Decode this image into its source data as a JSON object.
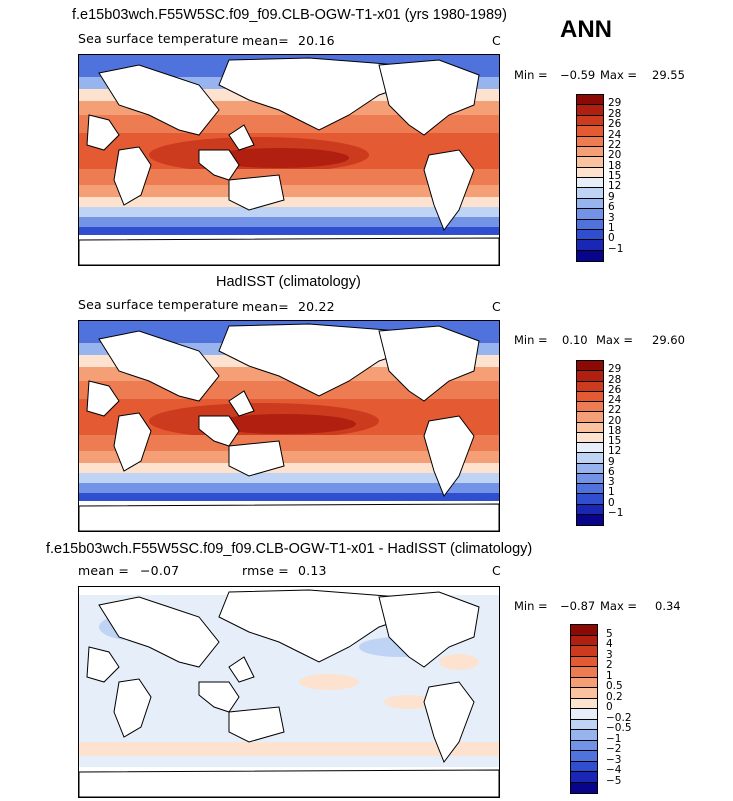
{
  "season": "ANN",
  "colors": {
    "sst_scale": [
      "#08058c",
      "#1a27b5",
      "#2f4fd0",
      "#4f72dd",
      "#7394e6",
      "#98b4ee",
      "#bfd3f5",
      "#e6eefa",
      "#fde2cf",
      "#fbc2a0",
      "#f59f76",
      "#ee7c52",
      "#e35a33",
      "#cc3b1d",
      "#b01f10",
      "#8c0a05"
    ],
    "diff_scale": [
      "#08058c",
      "#1a27b5",
      "#2f4fd0",
      "#4f72dd",
      "#7394e6",
      "#98b4ee",
      "#bfd3f5",
      "#e6eefa",
      "#fde2cf",
      "#fbc2a0",
      "#f59f76",
      "#ee7c52",
      "#e35a33",
      "#cc3b1d",
      "#b01f10",
      "#8c0a05"
    ]
  },
  "panels": {
    "model": {
      "title": "f.e15b03wch.F55W5SC.f09_f09.CLB-OGW-T1-x01 (yrs 1980-1989)",
      "field": "Sea surface temperature",
      "mean_label": "mean=",
      "mean_value": "20.16",
      "units": "C",
      "min_label": "Min =",
      "min_value": "−0.59",
      "max_label": "Max =",
      "max_value": "29.55"
    },
    "obs": {
      "title": "HadISST (climatology)",
      "field": "Sea surface temperature",
      "mean_label": "mean=",
      "mean_value": "20.22",
      "units": "C",
      "min_label": "Min =",
      "min_value": "0.10",
      "max_label": "Max =",
      "max_value": "29.60"
    },
    "diff": {
      "title": "f.e15b03wch.F55W5SC.f09_f09.CLB-OGW-T1-x01 - HadISST (climatology)",
      "mean_label": "mean =",
      "mean_value": "−0.07",
      "rmse_label": "rmse =",
      "rmse_value": "0.13",
      "units": "C",
      "min_label": "Min =",
      "min_value": "−0.87",
      "max_label": "Max =",
      "max_value": "0.34"
    }
  },
  "chart_data": [
    {
      "type": "heatmap",
      "title": "f.e15b03wch.F55W5SC.f09_f09.CLB-OGW-T1-x01 (yrs 1980-1989)",
      "variable": "Sea surface temperature",
      "units": "C",
      "mean": 20.16,
      "min": -0.59,
      "max": 29.55,
      "colorbar_levels": [
        "29",
        "28",
        "26",
        "24",
        "22",
        "20",
        "18",
        "15",
        "12",
        "9",
        "6",
        "3",
        "1",
        "0",
        "−1"
      ]
    },
    {
      "type": "heatmap",
      "title": "HadISST (climatology)",
      "variable": "Sea surface temperature",
      "units": "C",
      "mean": 20.22,
      "min": 0.1,
      "max": 29.6,
      "colorbar_levels": [
        "29",
        "28",
        "26",
        "24",
        "22",
        "20",
        "18",
        "15",
        "12",
        "9",
        "6",
        "3",
        "1",
        "0",
        "−1"
      ]
    },
    {
      "type": "heatmap",
      "title": "f.e15b03wch.F55W5SC.f09_f09.CLB-OGW-T1-x01 - HadISST (climatology)",
      "units": "C",
      "mean": -0.07,
      "rmse": 0.13,
      "min": -0.87,
      "max": 0.34,
      "colorbar_levels": [
        "5",
        "4",
        "3",
        "2",
        "1",
        "0.5",
        "0.2",
        "0",
        "−0.2",
        "−0.5",
        "−1",
        "−2",
        "−3",
        "−4",
        "−5"
      ]
    }
  ]
}
